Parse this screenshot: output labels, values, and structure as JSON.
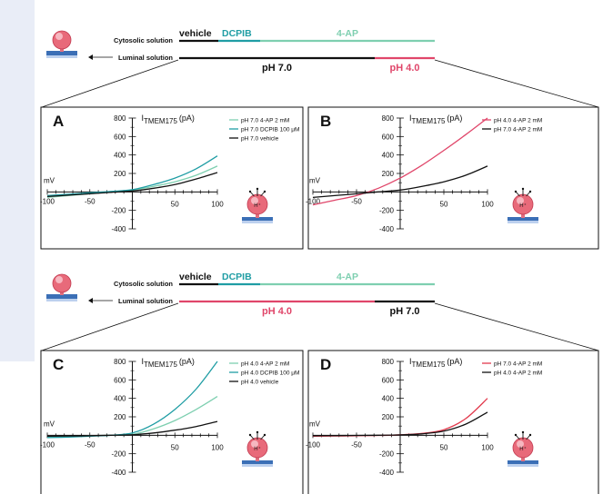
{
  "colors": {
    "background": "#e9edf7",
    "vehicle": "#111111",
    "dcpib": "#1f9da4",
    "ap4": "#7ecfb0",
    "ph70": "#111111",
    "ph40": "#e0466a",
    "red": "#e23a4d",
    "black": "#111111"
  },
  "icons": {
    "cell_icon": "cell-with-membrane-icon",
    "proton_cell_icon": "cell-with-h-plus-icon",
    "arrow": "left-arrow-icon"
  },
  "protocols": [
    {
      "cytosolic_label": "Cytosolic solution",
      "luminal_label": "Luminal solution",
      "drug_labels": [
        "vehicle",
        "DCPIB",
        "4-AP"
      ],
      "ph_labels": [
        "pH 7.0",
        "pH 4.0"
      ]
    },
    {
      "cytosolic_label": "Cytosolic solution",
      "luminal_label": "Luminal solution",
      "drug_labels": [
        "vehicle",
        "DCPIB",
        "4-AP"
      ],
      "ph_labels": [
        "pH 4.0",
        "pH 7.0"
      ]
    }
  ],
  "chart_data": [
    {
      "panel": "A",
      "type": "line",
      "ylabel": "I",
      "ylabel_sub": "TMEM175",
      "ylabel_unit": "(pA)",
      "xlabel": "mV",
      "xlim": [
        -100,
        100
      ],
      "ylim": [
        -400,
        800
      ],
      "xticks": [
        "-100",
        "-50",
        "50",
        "100"
      ],
      "yticks": [
        "800",
        "600",
        "400",
        "200",
        "-200",
        "-400"
      ],
      "x": [
        -100,
        -75,
        -50,
        -25,
        0,
        25,
        50,
        75,
        100
      ],
      "series": [
        {
          "name": "pH 7.0 4-AP 2 mM",
          "color": "#7ecfb0",
          "values": [
            -60,
            -40,
            -20,
            0,
            20,
            60,
            110,
            180,
            280
          ]
        },
        {
          "name": "pH 7.0 DCPIB 100 μM",
          "color": "#1f9da4",
          "values": [
            -40,
            -25,
            -10,
            5,
            25,
            80,
            150,
            250,
            390
          ]
        },
        {
          "name": "pH 7.0 vehicle",
          "color": "#111111",
          "values": [
            -50,
            -35,
            -20,
            -5,
            10,
            40,
            80,
            140,
            210
          ]
        }
      ]
    },
    {
      "panel": "B",
      "type": "line",
      "ylabel": "I",
      "ylabel_sub": "TMEM175",
      "ylabel_unit": "(pA)",
      "xlabel": "mV",
      "xlim": [
        -100,
        100
      ],
      "ylim": [
        -400,
        800
      ],
      "xticks": [
        "-100",
        "-50",
        "50",
        "100"
      ],
      "yticks": [
        "800",
        "600",
        "400",
        "200",
        "-200",
        "-400"
      ],
      "x": [
        -100,
        -75,
        -50,
        -25,
        0,
        25,
        50,
        75,
        100
      ],
      "series": [
        {
          "name": "pH 4.0 4-AP 2 mM",
          "color": "#e0466a",
          "values": [
            -140,
            -90,
            -40,
            40,
            150,
            290,
            450,
            620,
            800
          ]
        },
        {
          "name": "pH 7.0 4-AP 2 mM",
          "color": "#111111",
          "values": [
            -60,
            -40,
            -20,
            0,
            20,
            60,
            110,
            180,
            280
          ]
        }
      ]
    },
    {
      "panel": "C",
      "type": "line",
      "ylabel": "I",
      "ylabel_sub": "TMEM175",
      "ylabel_unit": "(pA)",
      "xlabel": "mV",
      "xlim": [
        -100,
        100
      ],
      "ylim": [
        -400,
        800
      ],
      "xticks": [
        "-100",
        "-50",
        "50",
        "100"
      ],
      "yticks": [
        "800",
        "600",
        "400",
        "200",
        "-200",
        "-400"
      ],
      "x": [
        -100,
        -75,
        -50,
        -25,
        0,
        25,
        50,
        75,
        100
      ],
      "series": [
        {
          "name": "pH 4.0 4-AP 2 mM",
          "color": "#7ecfb0",
          "values": [
            -20,
            -15,
            -5,
            0,
            10,
            70,
            160,
            280,
            420
          ]
        },
        {
          "name": "pH 4.0 DCPIB 100 μM",
          "color": "#1f9da4",
          "values": [
            -25,
            -20,
            -10,
            0,
            25,
            120,
            280,
            500,
            800
          ]
        },
        {
          "name": "pH 4.0 vehicle",
          "color": "#111111",
          "values": [
            -10,
            -8,
            -5,
            0,
            5,
            25,
            55,
            95,
            150
          ]
        }
      ]
    },
    {
      "panel": "D",
      "type": "line",
      "ylabel": "I",
      "ylabel_sub": "TMEM175",
      "ylabel_unit": "(pA)",
      "xlabel": "mV",
      "xlim": [
        -100,
        100
      ],
      "ylim": [
        -400,
        800
      ],
      "xticks": [
        "-100",
        "-50",
        "50",
        "100"
      ],
      "yticks": [
        "800",
        "600",
        "400",
        "200",
        "-200",
        "-400"
      ],
      "x": [
        -100,
        -75,
        -50,
        -25,
        0,
        25,
        50,
        75,
        100
      ],
      "series": [
        {
          "name": "pH 7.0 4-AP 2 mM",
          "color": "#e23a4d",
          "values": [
            -10,
            -8,
            -5,
            -2,
            5,
            20,
            60,
            180,
            400
          ]
        },
        {
          "name": "pH 4.0 4-AP 2 mM",
          "color": "#111111",
          "values": [
            -5,
            -4,
            -2,
            0,
            4,
            15,
            45,
            120,
            250
          ]
        }
      ]
    }
  ]
}
